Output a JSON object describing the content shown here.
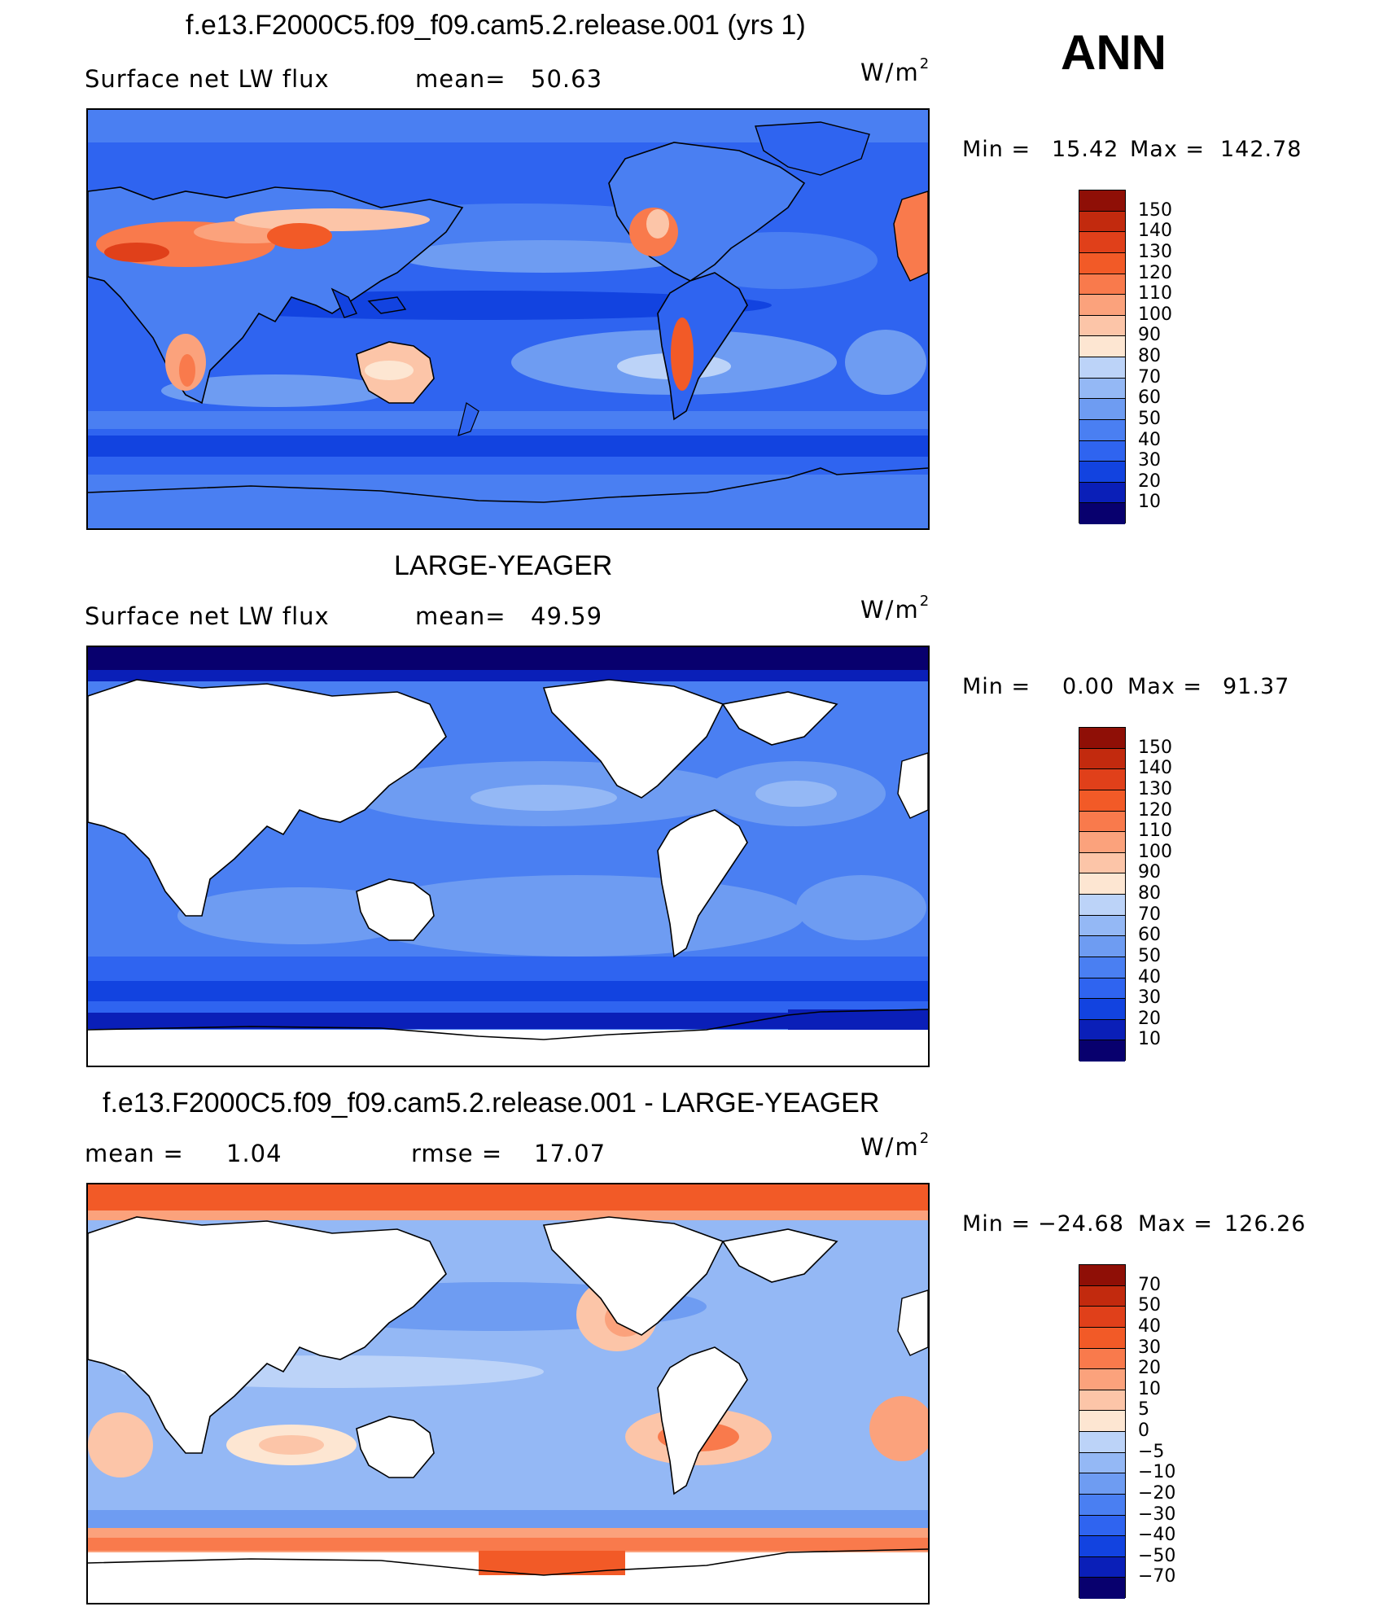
{
  "season": "ANN",
  "unit": {
    "base": "W/m",
    "exp": "2"
  },
  "colors": {
    "blues": [
      "#08006e",
      "#0a1fb8",
      "#1243e0",
      "#2f64f0",
      "#4a7ff2",
      "#6e9cf2",
      "#94b8f5",
      "#bcd3f8",
      "#dae8fb"
    ],
    "reds": [
      "#fde6d2",
      "#fcc5a8",
      "#fba27c",
      "#f97a4c",
      "#f25a27",
      "#e0401a",
      "#c22a0e",
      "#8f0f06"
    ],
    "land": "#ffffff",
    "coast": "#000000"
  },
  "panels": [
    {
      "id": "model",
      "title": "f.e13.F2000C5.f09_f09.cam5.2.release.001 (yrs 1)",
      "left_text": "Surface net LW flux",
      "mid_text": "mean=",
      "mid_value": "50.63",
      "minmax_text": "Min =",
      "min_value": "15.42",
      "max_text": "Max =",
      "max_value": "142.78",
      "colorbar_labels": [
        "150",
        "140",
        "130",
        "120",
        "110",
        "100",
        "90",
        "80",
        "70",
        "60",
        "50",
        "40",
        "30",
        "20",
        "10"
      ],
      "land_masked": false
    },
    {
      "id": "obs",
      "title": "LARGE-YEAGER",
      "left_text": "Surface net LW flux",
      "mid_text": "mean=",
      "mid_value": "49.59",
      "minmax_text": "Min =",
      "min_value": "0.00",
      "max_text": "Max =",
      "max_value": "91.37",
      "colorbar_labels": [
        "150",
        "140",
        "130",
        "120",
        "110",
        "100",
        "90",
        "80",
        "70",
        "60",
        "50",
        "40",
        "30",
        "20",
        "10"
      ],
      "land_masked": true
    },
    {
      "id": "diff",
      "title": "f.e13.F2000C5.f09_f09.cam5.2.release.001 - LARGE-YEAGER",
      "left_text": "mean =",
      "left_value": "1.04",
      "mid_text": "rmse =",
      "mid_value": "17.07",
      "minmax_text": "Min =",
      "min_value": "−24.68",
      "max_text": "Max =",
      "max_value": "126.26",
      "colorbar_labels": [
        "70",
        "50",
        "40",
        "30",
        "20",
        "10",
        "5",
        "0",
        "−5",
        "−10",
        "−20",
        "−30",
        "−40",
        "−50",
        "−70"
      ],
      "land_masked": true
    }
  ]
}
